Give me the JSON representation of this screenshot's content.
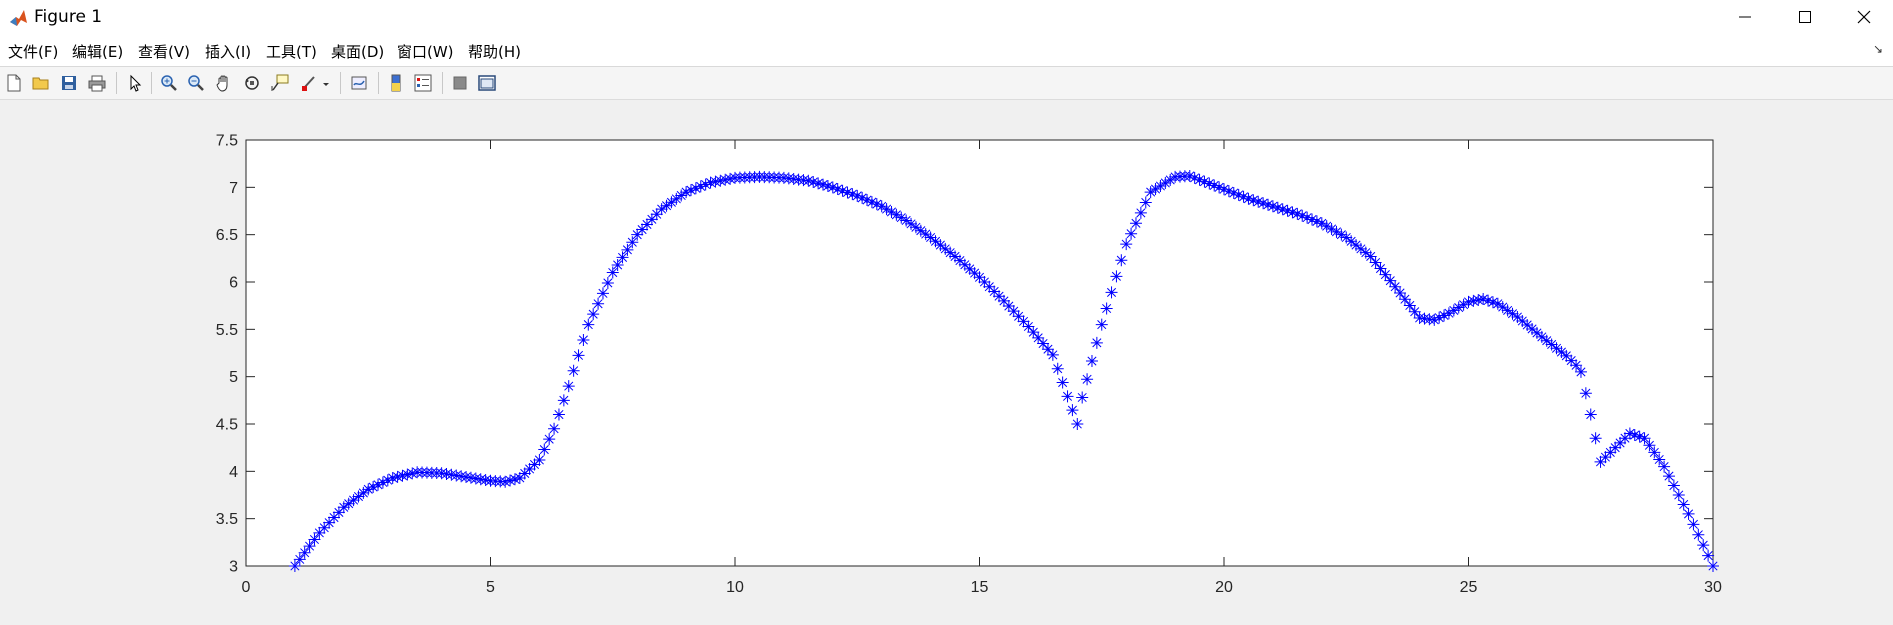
{
  "window": {
    "title": "Figure 1"
  },
  "menu": {
    "items": [
      {
        "id": "file",
        "label": "文件(F)"
      },
      {
        "id": "edit",
        "label": "编辑(E)"
      },
      {
        "id": "view",
        "label": "查看(V)"
      },
      {
        "id": "insert",
        "label": "插入(I)"
      },
      {
        "id": "tools",
        "label": "工具(T)"
      },
      {
        "id": "desktop",
        "label": "桌面(D)"
      },
      {
        "id": "window",
        "label": "窗口(W)"
      },
      {
        "id": "help",
        "label": "帮助(H)"
      }
    ]
  },
  "toolbar": {
    "buttons": [
      "new-figure-icon",
      "open-icon",
      "save-icon",
      "print-icon",
      "select-arrow-icon",
      "zoom-in-icon",
      "zoom-out-icon",
      "pan-hand-icon",
      "rotate-3d-icon",
      "data-cursor-icon",
      "brush-icon",
      "link-plot-icon",
      "colorbar-icon",
      "legend-icon",
      "hide-plot-tools-icon",
      "show-plot-tools-icon"
    ]
  },
  "colors": {
    "marker": "#0000ff",
    "axes_bg": "#ffffff",
    "figure_bg": "#f0f0f0"
  },
  "chart_data": {
    "type": "scatter",
    "marker": "*",
    "xlim": [
      0,
      30
    ],
    "ylim": [
      3,
      7.5
    ],
    "xticks": [
      "0",
      "5",
      "10",
      "15",
      "20",
      "25",
      "30"
    ],
    "yticks": [
      "3",
      "3.5",
      "4",
      "4.5",
      "5",
      "5.5",
      "6",
      "6.5",
      "7",
      "7.5"
    ],
    "grid": false,
    "x_start": 1,
    "x_end": 30,
    "x_step": 0.1,
    "curve_keypoints": [
      [
        1.0,
        3.0
      ],
      [
        1.5,
        3.35
      ],
      [
        2.0,
        3.62
      ],
      [
        2.5,
        3.81
      ],
      [
        3.0,
        3.93
      ],
      [
        3.5,
        3.99
      ],
      [
        4.0,
        3.98
      ],
      [
        4.5,
        3.94
      ],
      [
        5.0,
        3.9
      ],
      [
        5.3,
        3.89
      ],
      [
        5.6,
        3.93
      ],
      [
        6.0,
        4.12
      ],
      [
        6.3,
        4.45
      ],
      [
        6.6,
        4.9
      ],
      [
        7.0,
        5.55
      ],
      [
        7.5,
        6.1
      ],
      [
        8.0,
        6.5
      ],
      [
        8.5,
        6.77
      ],
      [
        9.0,
        6.95
      ],
      [
        9.5,
        7.05
      ],
      [
        10.0,
        7.1
      ],
      [
        10.5,
        7.11
      ],
      [
        11.0,
        7.1
      ],
      [
        11.5,
        7.07
      ],
      [
        12.0,
        7.0
      ],
      [
        12.5,
        6.91
      ],
      [
        13.0,
        6.8
      ],
      [
        13.5,
        6.65
      ],
      [
        14.0,
        6.47
      ],
      [
        14.5,
        6.27
      ],
      [
        15.0,
        6.05
      ],
      [
        15.5,
        5.8
      ],
      [
        16.0,
        5.53
      ],
      [
        16.5,
        5.23
      ],
      [
        17.0,
        4.5
      ],
      [
        17.1,
        4.78
      ],
      [
        17.5,
        5.55
      ],
      [
        18.0,
        6.4
      ],
      [
        18.5,
        6.95
      ],
      [
        19.0,
        7.11
      ],
      [
        19.3,
        7.12
      ],
      [
        19.5,
        7.08
      ],
      [
        20.0,
        6.98
      ],
      [
        20.5,
        6.88
      ],
      [
        21.0,
        6.8
      ],
      [
        21.5,
        6.72
      ],
      [
        22.0,
        6.62
      ],
      [
        22.5,
        6.47
      ],
      [
        23.0,
        6.27
      ],
      [
        23.5,
        5.95
      ],
      [
        24.0,
        5.62
      ],
      [
        24.3,
        5.6
      ],
      [
        24.6,
        5.67
      ],
      [
        25.0,
        5.79
      ],
      [
        25.3,
        5.82
      ],
      [
        25.6,
        5.77
      ],
      [
        26.0,
        5.63
      ],
      [
        26.5,
        5.42
      ],
      [
        27.0,
        5.22
      ],
      [
        27.2,
        5.12
      ],
      [
        27.3,
        5.05
      ],
      [
        27.5,
        4.6
      ],
      [
        27.7,
        4.1
      ],
      [
        28.0,
        4.25
      ],
      [
        28.3,
        4.4
      ],
      [
        28.6,
        4.35
      ],
      [
        29.0,
        4.05
      ],
      [
        29.5,
        3.55
      ],
      [
        30.0,
        3.0
      ]
    ]
  }
}
